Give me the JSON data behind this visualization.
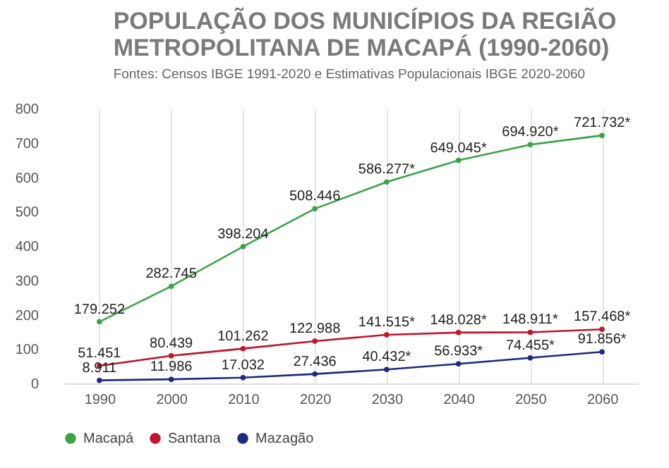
{
  "chart_data": {
    "type": "line",
    "title": "POPULAÇÃO DOS MUNICÍPIOS DA REGIÃO METROPOLITANA DE MACAPÁ (1990-2060)",
    "subtitle": "Fontes: Censos IBGE 1991-2020 e Estimativas Populacionais IBGE 2020-2060",
    "x": [
      1990,
      2000,
      2010,
      2020,
      2030,
      2040,
      2050,
      2060
    ],
    "series": [
      {
        "name": "Macapá",
        "color": "#3aa346",
        "values": [
          179.252,
          282.745,
          398.204,
          508.446,
          586.277,
          649.045,
          694.92,
          721.732
        ],
        "value_labels": [
          "179.252",
          "282.745",
          "398.204",
          "508.446",
          "586.277*",
          "649.045*",
          "694.920*",
          "721.732*"
        ]
      },
      {
        "name": "Santana",
        "color": "#c0152a",
        "values": [
          51.451,
          80.439,
          101.262,
          122.988,
          141.515,
          148.028,
          148.911,
          157.468
        ],
        "value_labels": [
          "51.451",
          "80.439",
          "101.262",
          "122.988",
          "141.515*",
          "148.028*",
          "148.911*",
          "157.468*"
        ]
      },
      {
        "name": "Mazagão",
        "color": "#1c2a80",
        "values": [
          8.911,
          11.986,
          17.032,
          27.436,
          40.432,
          56.933,
          74.455,
          91.856
        ],
        "value_labels": [
          "8.911",
          "11.986",
          "17.032",
          "27.436",
          "40.432*",
          "56.933*",
          "74.455*",
          "91.856*"
        ]
      }
    ],
    "xlim": [
      1985,
      2065
    ],
    "xticks": [
      1990,
      2000,
      2010,
      2020,
      2030,
      2040,
      2050,
      2060
    ],
    "ylim": [
      0,
      800
    ],
    "yticks": [
      0,
      100,
      200,
      300,
      400,
      500,
      600,
      700,
      800
    ],
    "grid": "x",
    "legend": "bottom",
    "marker": "circle",
    "line_style": "solid"
  }
}
